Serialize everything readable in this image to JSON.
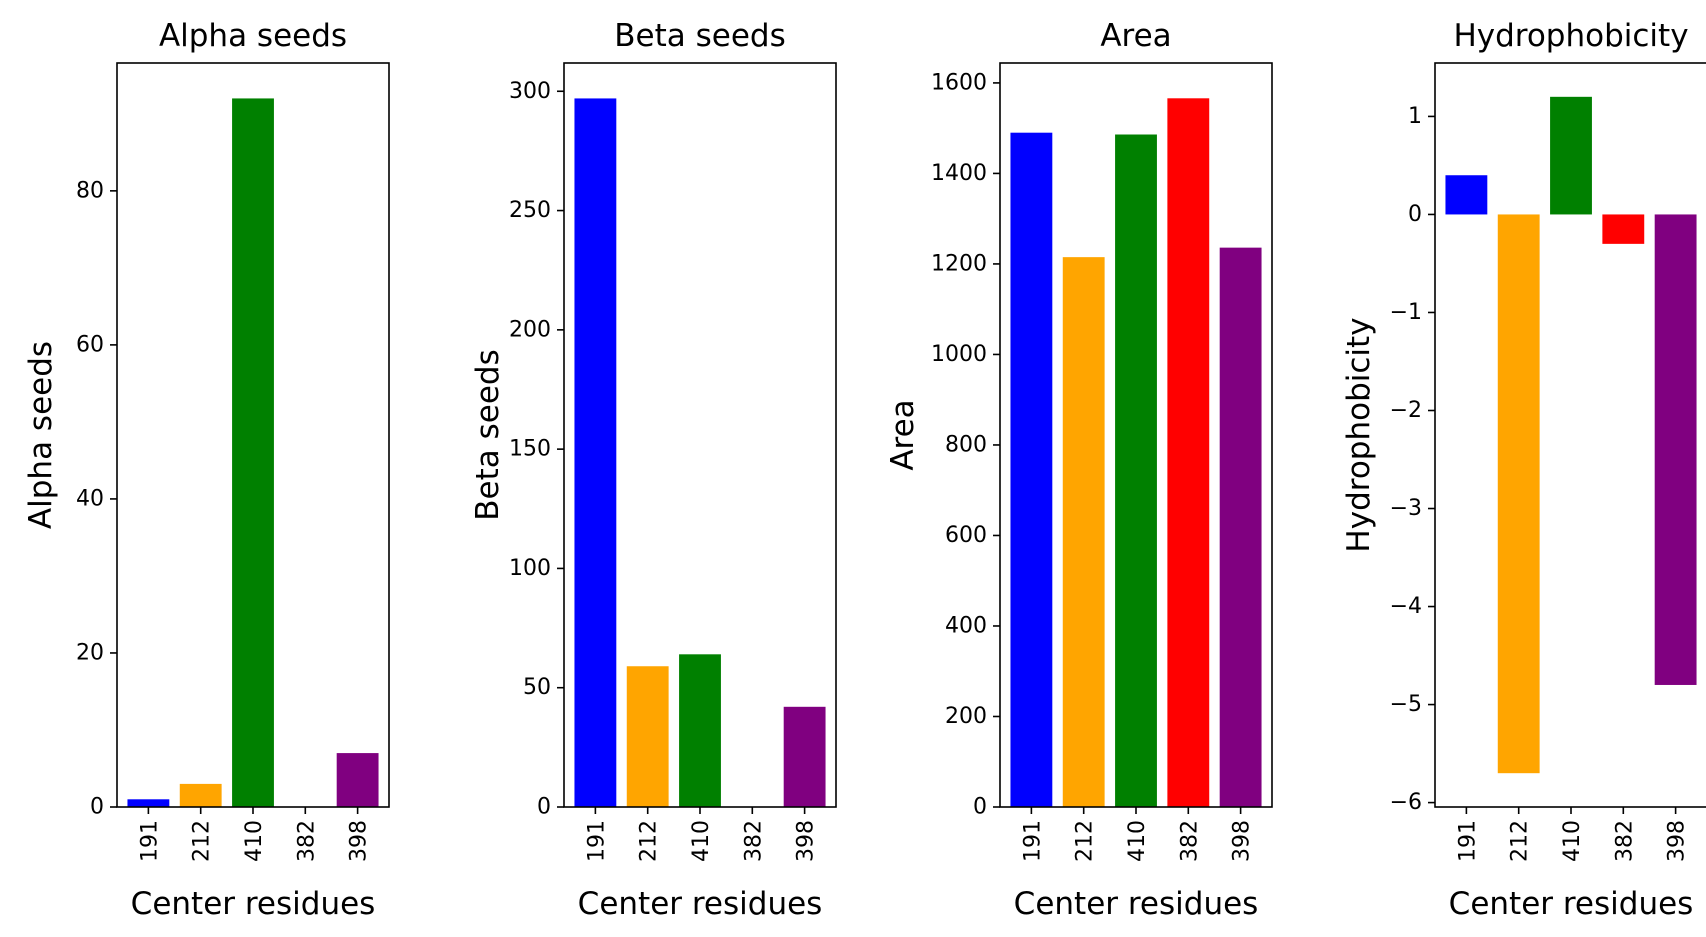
{
  "chart_data": [
    {
      "type": "bar",
      "title": "Alpha seeds",
      "xlabel": "Center residues",
      "ylabel": "Alpha seeds",
      "categories": [
        "191",
        "212",
        "410",
        "382",
        "398"
      ],
      "values": [
        1,
        3,
        92,
        0,
        7
      ],
      "ylim": [
        0,
        96.6
      ],
      "yticks": [
        0,
        20,
        40,
        60,
        80
      ],
      "colors": [
        "#0000ff",
        "#ffa500",
        "#008000",
        "#ff0000",
        "#800080"
      ],
      "grid": false
    },
    {
      "type": "bar",
      "title": "Beta seeds",
      "xlabel": "Center residues",
      "ylabel": "Beta seeds",
      "categories": [
        "191",
        "212",
        "410",
        "382",
        "398"
      ],
      "values": [
        297,
        59,
        64,
        0,
        42
      ],
      "ylim": [
        0,
        311.85
      ],
      "yticks": [
        0,
        50,
        100,
        150,
        200,
        250,
        300
      ],
      "colors": [
        "#0000ff",
        "#ffa500",
        "#008000",
        "#ff0000",
        "#800080"
      ],
      "grid": false
    },
    {
      "type": "bar",
      "title": "Area",
      "xlabel": "Center residues",
      "ylabel": "Area",
      "categories": [
        "191",
        "212",
        "410",
        "382",
        "398"
      ],
      "values": [
        1490,
        1215,
        1486,
        1566,
        1236
      ],
      "ylim": [
        0,
        1644
      ],
      "yticks": [
        0,
        200,
        400,
        600,
        800,
        1000,
        1200,
        1400,
        1600
      ],
      "colors": [
        "#0000ff",
        "#ffa500",
        "#008000",
        "#ff0000",
        "#800080"
      ],
      "grid": false
    },
    {
      "type": "bar",
      "title": "Hydrophobicity",
      "xlabel": "Center residues",
      "ylabel": "Hydrophobicity",
      "categories": [
        "191",
        "212",
        "410",
        "382",
        "398"
      ],
      "values": [
        0.4,
        -5.7,
        1.2,
        -0.3,
        -4.8
      ],
      "ylim": [
        -6.045,
        1.545
      ],
      "yticks": [
        -6,
        -5,
        -4,
        -3,
        -2,
        -1,
        0,
        1
      ],
      "colors": [
        "#0000ff",
        "#ffa500",
        "#008000",
        "#ff0000",
        "#800080"
      ],
      "grid": false
    }
  ]
}
